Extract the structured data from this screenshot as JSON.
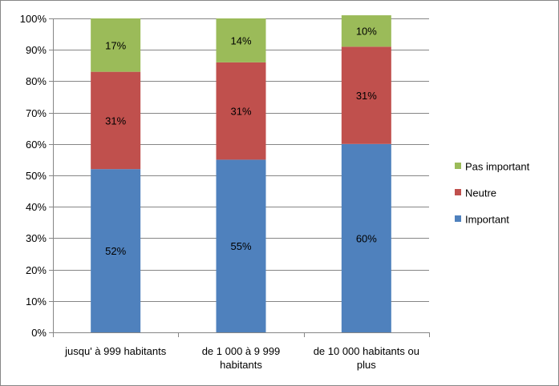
{
  "chart_data": {
    "type": "bar",
    "stacked": true,
    "categories": [
      [
        "jusqu' à 999 habitants"
      ],
      [
        "de 1 000 à 9 999",
        "habitants"
      ],
      [
        "de 10 000 habitants ou",
        "plus"
      ]
    ],
    "series": [
      {
        "name": "Important",
        "color": "#4F81BD",
        "values": [
          52,
          55,
          60
        ],
        "labels": [
          "52%",
          "55%",
          "60%"
        ]
      },
      {
        "name": "Neutre",
        "color": "#C0504D",
        "values": [
          31,
          31,
          31
        ],
        "labels": [
          "31%",
          "31%",
          "31%"
        ]
      },
      {
        "name": "Pas important",
        "color": "#9BBB59",
        "values": [
          17,
          14,
          10
        ],
        "labels": [
          "17%",
          "14%",
          "10%"
        ]
      }
    ],
    "yticks": [
      "0%",
      "10%",
      "20%",
      "30%",
      "40%",
      "50%",
      "60%",
      "70%",
      "80%",
      "90%",
      "100%"
    ],
    "ylim": [
      0,
      100
    ],
    "grid": true,
    "legend_position": "right"
  }
}
